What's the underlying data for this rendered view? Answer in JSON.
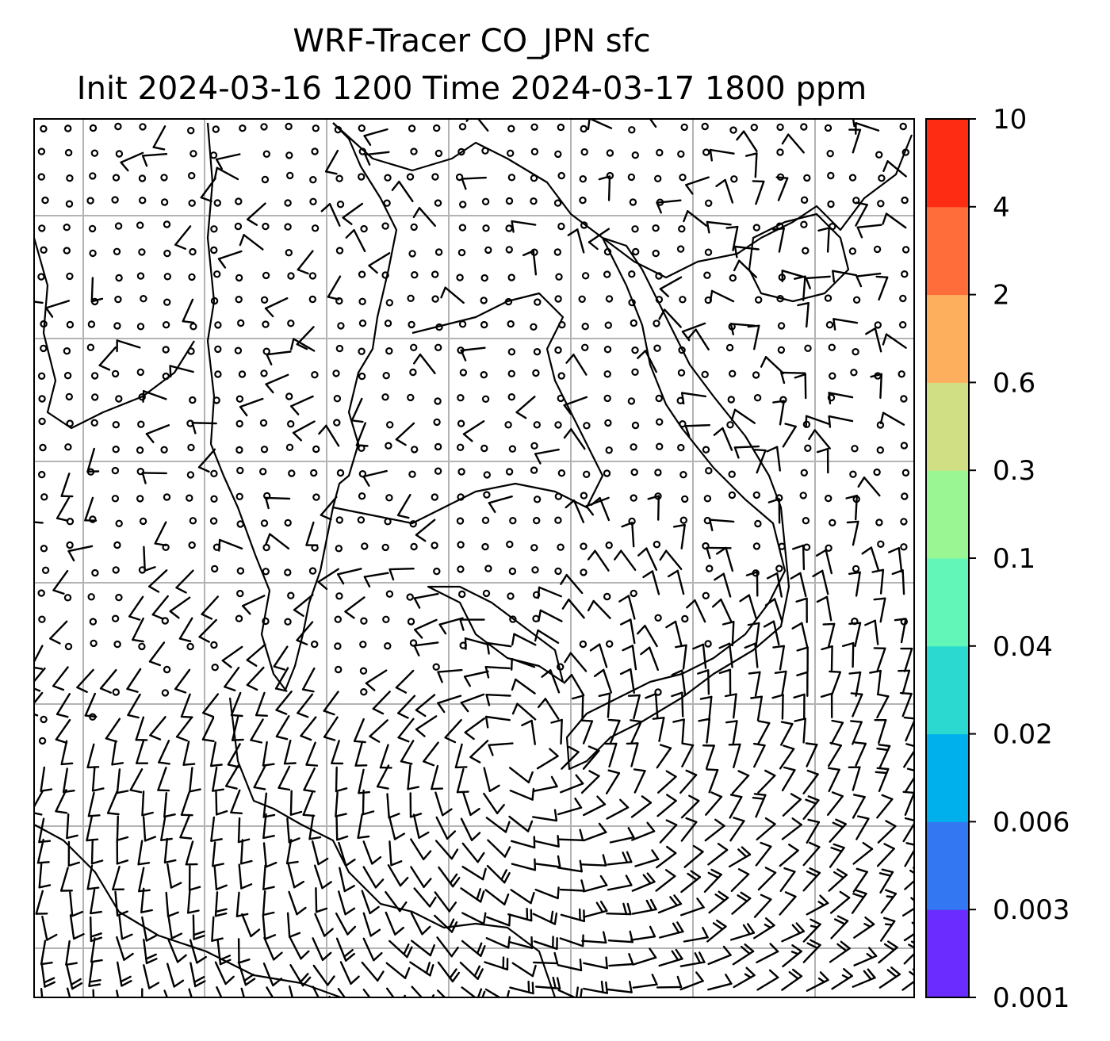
{
  "figure": {
    "title_line1": "WRF-Tracer CO_JPN sfc",
    "title_line2": "Init 2024-03-16 1200 Time 2024-03-17 1800 ppm"
  },
  "colorbar": {
    "unit": "ppm",
    "levels": [
      "0.001",
      "0.003",
      "0.006",
      "0.02",
      "0.04",
      "0.1",
      "0.3",
      "0.6",
      "2",
      "4",
      "10"
    ],
    "colors": [
      "#6a2cff",
      "#3377f2",
      "#00b0ec",
      "#2cd9d0",
      "#62f6b8",
      "#99f693",
      "#d1df84",
      "#fdaf5e",
      "#ff6e3a",
      "#ff2c14"
    ]
  },
  "map": {
    "style": "wind barbs over coastline map",
    "gridlines": true,
    "tracer_field": "below lowest contour (no shading)"
  }
}
